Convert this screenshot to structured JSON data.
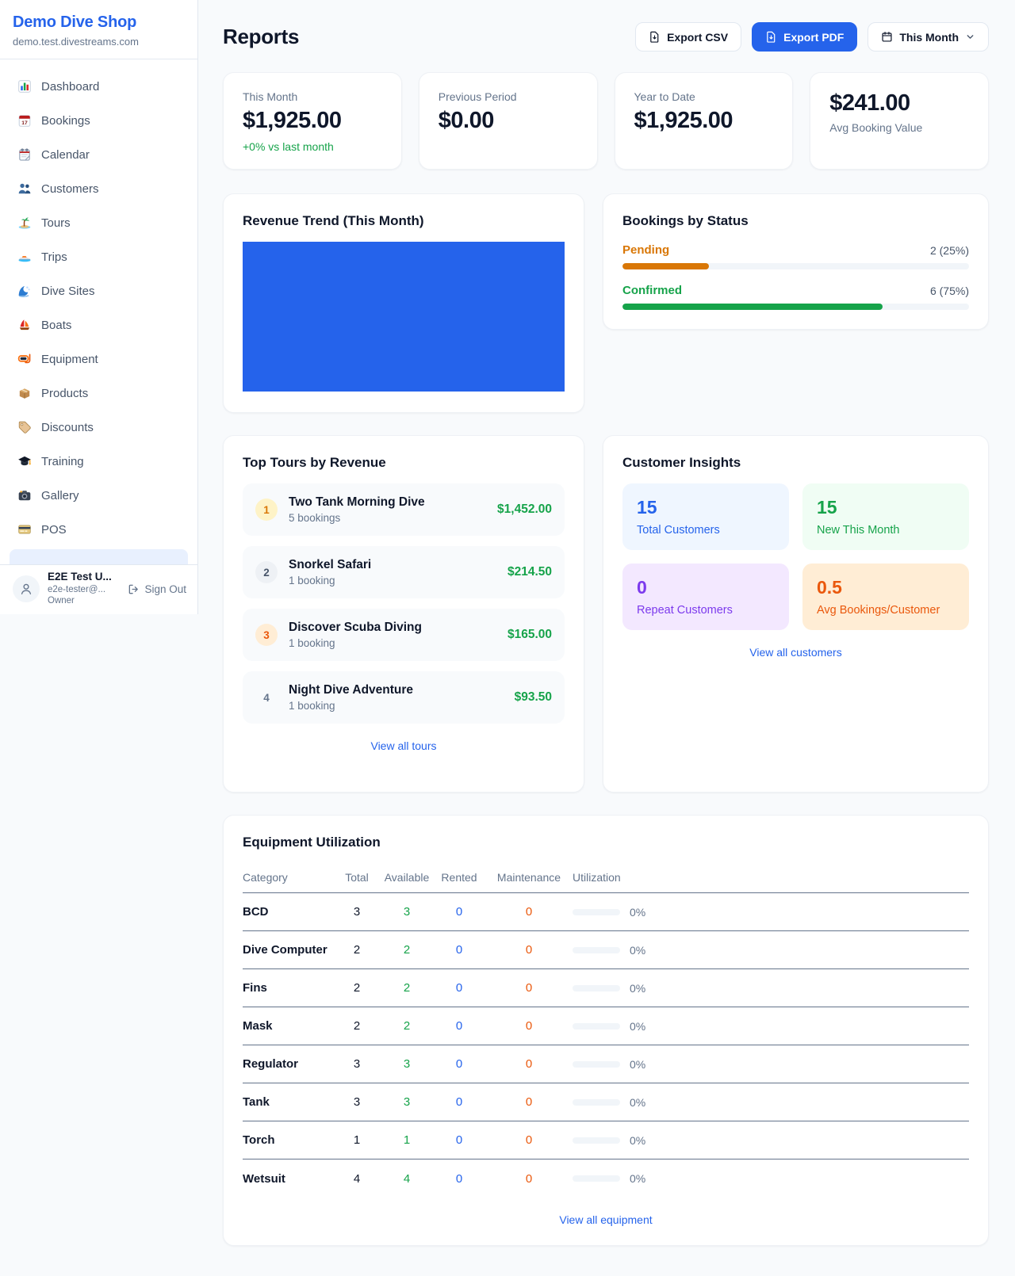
{
  "colors": {
    "brand_blue": "#2563eb",
    "chart_fill": "#2563eb",
    "green": "#16a34a",
    "pending_orange": "#d97706",
    "maintenance_orange": "#ea580c",
    "link_blue": "#2563eb",
    "muted_gray": "#64748b",
    "page_bg": "#f8fafc"
  },
  "sidebar": {
    "shop_name": "Demo Dive Shop",
    "domain": "demo.test.divestreams.com",
    "nav": [
      {
        "label": "Dashboard",
        "icon": "bar-chart-icon"
      },
      {
        "label": "Bookings",
        "icon": "calendar-date-icon"
      },
      {
        "label": "Calendar",
        "icon": "spiral-calendar-icon"
      },
      {
        "label": "Customers",
        "icon": "people-icon"
      },
      {
        "label": "Tours",
        "icon": "island-icon"
      },
      {
        "label": "Trips",
        "icon": "speedboat-icon"
      },
      {
        "label": "Dive Sites",
        "icon": "wave-icon"
      },
      {
        "label": "Boats",
        "icon": "sailboat-icon"
      },
      {
        "label": "Equipment",
        "icon": "dive-mask-icon"
      },
      {
        "label": "Products",
        "icon": "package-icon"
      },
      {
        "label": "Discounts",
        "icon": "tag-icon"
      },
      {
        "label": "Training",
        "icon": "graduation-cap-icon"
      },
      {
        "label": "Gallery",
        "icon": "camera-icon"
      },
      {
        "label": "POS",
        "icon": "credit-card-icon"
      }
    ],
    "user": {
      "name": "E2E Test U...",
      "email": "e2e-tester@...",
      "role": "Owner",
      "sign_out_label": "Sign Out"
    }
  },
  "header": {
    "title": "Reports",
    "export_csv_label": "Export CSV",
    "export_pdf_label": "Export PDF",
    "period_label": "This Month"
  },
  "stats": [
    {
      "label": "This Month",
      "value": "$1,925.00",
      "delta": "+0% vs last month"
    },
    {
      "label": "Previous Period",
      "value": "$0.00",
      "delta": ""
    },
    {
      "label": "Year to Date",
      "value": "$1,925.00",
      "delta": ""
    },
    {
      "label": "Avg Booking Value",
      "value": "$241.00",
      "delta": ""
    }
  ],
  "revenue_trend": {
    "title": "Revenue Trend (This Month)",
    "bar_fill_percent": 100,
    "bar_color": "#2563eb"
  },
  "bookings_by_status": {
    "title": "Bookings by Status",
    "items": [
      {
        "label": "Pending",
        "value_text": "2 (25%)",
        "percent": 25,
        "color": "#d97706"
      },
      {
        "label": "Confirmed",
        "value_text": "6 (75%)",
        "percent": 75,
        "color": "#16a34a"
      }
    ]
  },
  "top_tours": {
    "title": "Top Tours by Revenue",
    "view_all_label": "View all tours",
    "items": [
      {
        "rank": "1",
        "name": "Two Tank Morning Dive",
        "bookings": "5 bookings",
        "revenue": "$1,452.00"
      },
      {
        "rank": "2",
        "name": "Snorkel Safari",
        "bookings": "1 booking",
        "revenue": "$214.50"
      },
      {
        "rank": "3",
        "name": "Discover Scuba Diving",
        "bookings": "1 booking",
        "revenue": "$165.00"
      },
      {
        "rank": "4",
        "name": "Night Dive Adventure",
        "bookings": "1 booking",
        "revenue": "$93.50"
      }
    ]
  },
  "customer_insights": {
    "title": "Customer Insights",
    "view_all_label": "View all customers",
    "tiles": [
      {
        "value": "15",
        "label": "Total Customers",
        "accent": "#2563eb"
      },
      {
        "value": "15",
        "label": "New This Month",
        "accent": "#16a34a"
      },
      {
        "value": "0",
        "label": "Repeat Customers",
        "accent": "#7c3aed"
      },
      {
        "value": "0.5",
        "label": "Avg Bookings/Customer",
        "accent": "#ea580c"
      }
    ]
  },
  "equipment": {
    "title": "Equipment Utilization",
    "view_all_label": "View all equipment",
    "columns": [
      "Category",
      "Total",
      "Available",
      "Rented",
      "Maintenance",
      "Utilization"
    ],
    "rows": [
      {
        "category": "BCD",
        "total": "3",
        "available": "3",
        "rented": "0",
        "maintenance": "0",
        "utilization": "0%"
      },
      {
        "category": "Dive Computer",
        "total": "2",
        "available": "2",
        "rented": "0",
        "maintenance": "0",
        "utilization": "0%"
      },
      {
        "category": "Fins",
        "total": "2",
        "available": "2",
        "rented": "0",
        "maintenance": "0",
        "utilization": "0%"
      },
      {
        "category": "Mask",
        "total": "2",
        "available": "2",
        "rented": "0",
        "maintenance": "0",
        "utilization": "0%"
      },
      {
        "category": "Regulator",
        "total": "3",
        "available": "3",
        "rented": "0",
        "maintenance": "0",
        "utilization": "0%"
      },
      {
        "category": "Tank",
        "total": "3",
        "available": "3",
        "rented": "0",
        "maintenance": "0",
        "utilization": "0%"
      },
      {
        "category": "Torch",
        "total": "1",
        "available": "1",
        "rented": "0",
        "maintenance": "0",
        "utilization": "0%"
      },
      {
        "category": "Wetsuit",
        "total": "4",
        "available": "4",
        "rented": "0",
        "maintenance": "0",
        "utilization": "0%"
      }
    ]
  }
}
